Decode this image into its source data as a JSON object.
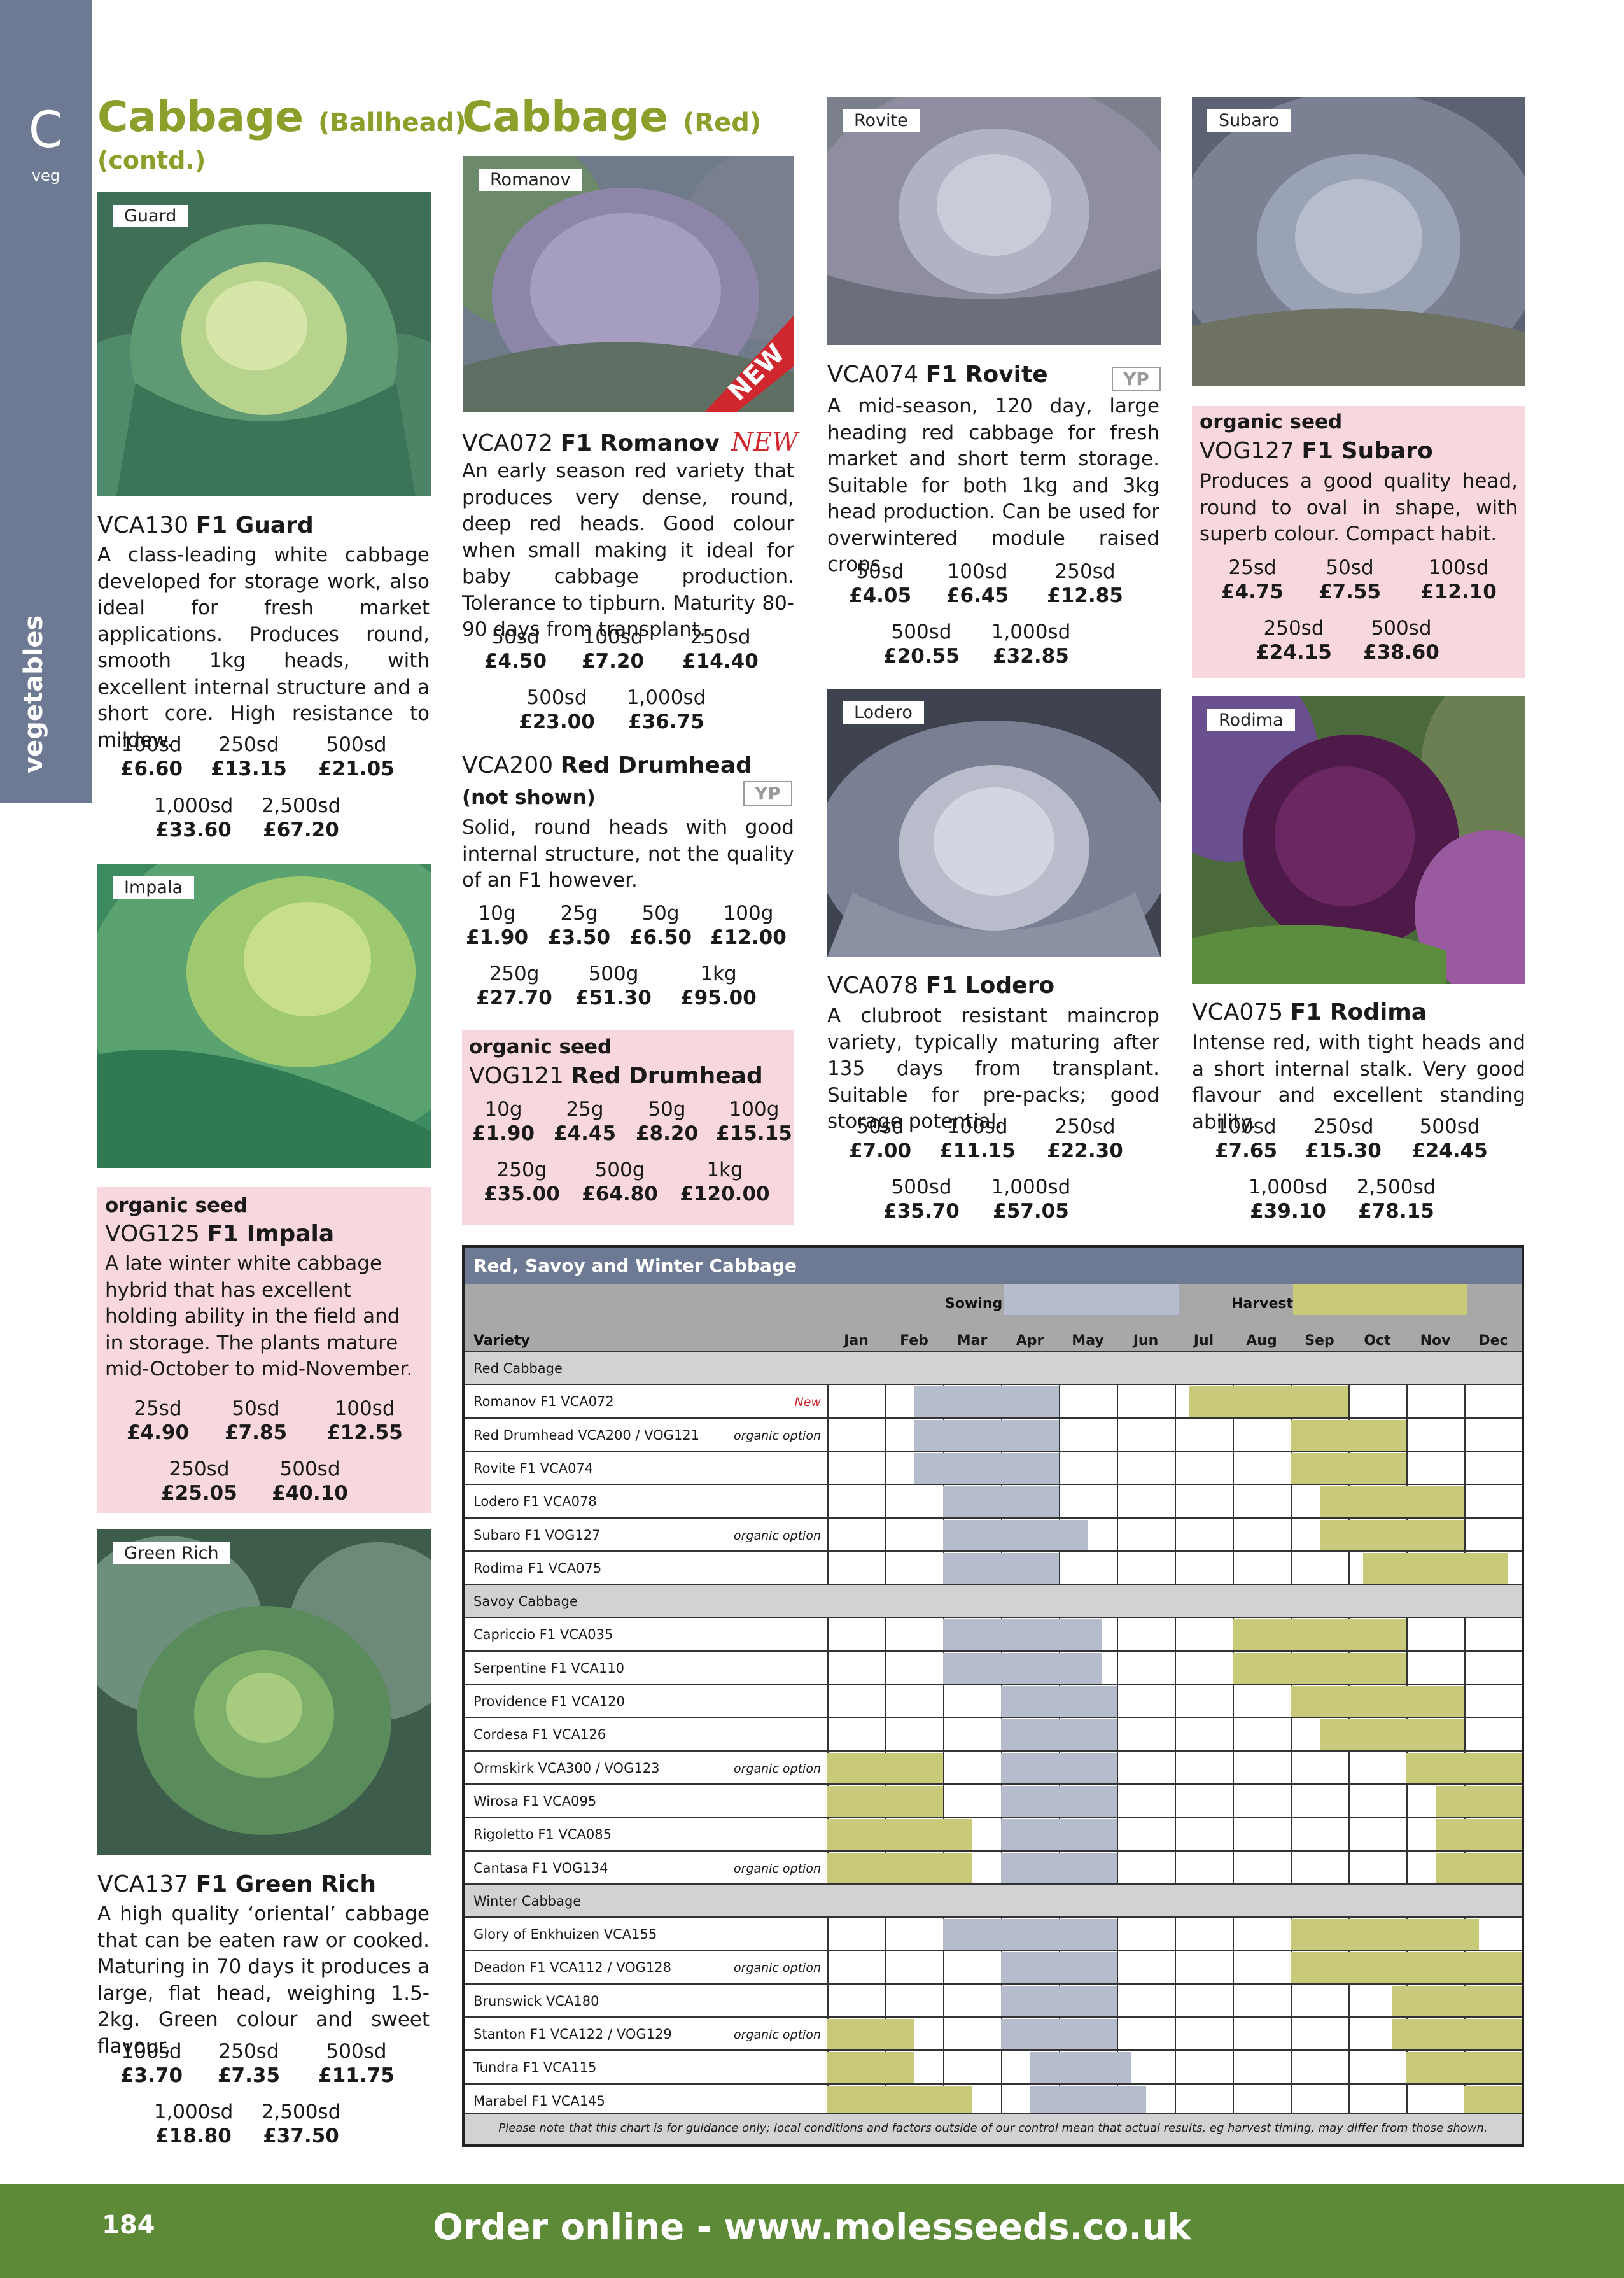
{
  "side_tab": {
    "letter": "C",
    "sub": "veg",
    "vertical": "vegetables"
  },
  "col1": {
    "title": "Cabbage",
    "title_sub": "(Ballhead)",
    "contd": "(contd.)",
    "guard": {
      "label": "Guard",
      "code": "VCA130",
      "name": "F1 Guard",
      "desc": "A class-leading white cabbage developed for storage work, also ideal for fresh market applications. Produces round, smooth 1kg heads, with excellent internal structure and a short core. High resistance to mildew.",
      "prices": [
        [
          "100sd",
          "£6.60"
        ],
        [
          "250sd",
          "£13.15"
        ],
        [
          "500sd",
          "£21.05"
        ],
        [
          "1,000sd",
          "£33.60"
        ],
        [
          "2,500sd",
          "£67.20"
        ]
      ]
    },
    "impala": {
      "label": "Impala",
      "organic": "organic seed",
      "code": "VOG125",
      "name": "F1 Impala",
      "desc": "A late winter white cabbage hybrid that has excellent holding ability in the field and in storage. The plants mature mid-October to mid-November.",
      "prices": [
        [
          "25sd",
          "£4.90"
        ],
        [
          "50sd",
          "£7.85"
        ],
        [
          "100sd",
          "£12.55"
        ],
        [
          "250sd",
          "£25.05"
        ],
        [
          "500sd",
          "£40.10"
        ]
      ]
    },
    "greenrich": {
      "label": "Green Rich",
      "code": "VCA137",
      "name": "F1 Green Rich",
      "desc": "A high quality ‘oriental’ cabbage that can be eaten raw or cooked. Maturing in 70 days it produces a large, flat head, weighing 1.5-2kg. Green colour and sweet flavour.",
      "prices": [
        [
          "100sd",
          "£3.70"
        ],
        [
          "250sd",
          "£7.35"
        ],
        [
          "500sd",
          "£11.75"
        ],
        [
          "1,000sd",
          "£18.80"
        ],
        [
          "2,500sd",
          "£37.50"
        ]
      ]
    }
  },
  "col2": {
    "title": "Cabbage",
    "title_sub": "(Red)",
    "romanov": {
      "label": "Romanov",
      "ribbon": "NEW",
      "code": "VCA072",
      "name": "F1 Romanov",
      "new": "NEW",
      "desc": "An early season red variety that produces very dense, round, deep red heads. Good colour when small making it ideal for baby cabbage production. Tolerance to tipburn. Maturity 80-90 days from transplant.",
      "prices": [
        [
          "50sd",
          "£4.50"
        ],
        [
          "100sd",
          "£7.20"
        ],
        [
          "250sd",
          "£14.40"
        ],
        [
          "500sd",
          "£23.00"
        ],
        [
          "1,000sd",
          "£36.75"
        ]
      ]
    },
    "drumhead": {
      "code": "VCA200",
      "name": "Red Drumhead",
      "not_shown": "(not shown)",
      "badge": "YP",
      "desc": "Solid, round heads with good internal structure, not the quality of an F1 however.",
      "prices": [
        [
          "10g",
          "£1.90"
        ],
        [
          "25g",
          "£3.50"
        ],
        [
          "50g",
          "£6.50"
        ],
        [
          "100g",
          "£12.00"
        ],
        [
          "250g",
          "£27.70"
        ],
        [
          "500g",
          "£51.30"
        ],
        [
          "1kg",
          "£95.00"
        ]
      ]
    },
    "drumhead_org": {
      "organic": "organic seed",
      "code": "VOG121",
      "name": "Red Drumhead",
      "prices": [
        [
          "10g",
          "£1.90"
        ],
        [
          "25g",
          "£4.45"
        ],
        [
          "50g",
          "£8.20"
        ],
        [
          "100g",
          "£15.15"
        ],
        [
          "250g",
          "£35.00"
        ],
        [
          "500g",
          "£64.80"
        ],
        [
          "1kg",
          "£120.00"
        ]
      ]
    }
  },
  "col3": {
    "rovite": {
      "label": "Rovite",
      "code": "VCA074",
      "name": "F1 Rovite",
      "badge": "YP",
      "desc": "A mid-season, 120 day, large heading red cabbage for fresh market and short term storage. Suitable for both 1kg and 3kg head production. Can be used for overwintered module raised crops.",
      "prices": [
        [
          "50sd",
          "£4.05"
        ],
        [
          "100sd",
          "£6.45"
        ],
        [
          "250sd",
          "£12.85"
        ],
        [
          "500sd",
          "£20.55"
        ],
        [
          "1,000sd",
          "£32.85"
        ]
      ]
    },
    "lodero": {
      "label": "Lodero",
      "code": "VCA078",
      "name": "F1 Lodero",
      "desc": "A clubroot resistant maincrop variety, typically maturing after 135 days from transplant. Suitable for pre-packs; good storage potential.",
      "prices": [
        [
          "50sd",
          "£7.00"
        ],
        [
          "100sd",
          "£11.15"
        ],
        [
          "250sd",
          "£22.30"
        ],
        [
          "500sd",
          "£35.70"
        ],
        [
          "1,000sd",
          "£57.05"
        ]
      ]
    }
  },
  "col4": {
    "subaro": {
      "label": "Subaro",
      "organic": "organic seed",
      "code": "VOG127",
      "name": "F1 Subaro",
      "desc": "Produces a good quality head, round to oval in shape, with superb colour. Compact habit.",
      "prices": [
        [
          "25sd",
          "£4.75"
        ],
        [
          "50sd",
          "£7.55"
        ],
        [
          "100sd",
          "£12.10"
        ],
        [
          "250sd",
          "£24.15"
        ],
        [
          "500sd",
          "£38.60"
        ]
      ]
    },
    "rodima": {
      "label": "Rodima",
      "code": "VCA075",
      "name": "F1 Rodima",
      "desc": "Intense red, with tight heads and a short internal stalk. Very good flavour and excellent standing ability.",
      "prices": [
        [
          "100sd",
          "£7.65"
        ],
        [
          "250sd",
          "£15.30"
        ],
        [
          "500sd",
          "£24.45"
        ],
        [
          "1,000sd",
          "£39.10"
        ],
        [
          "2,500sd",
          "£78.15"
        ]
      ]
    }
  },
  "chart_data": {
    "type": "table",
    "title": "Red, Savoy and Winter Cabbage",
    "legend": {
      "sowing": "Sowing",
      "harvest": "Harvest",
      "sowing_color": "#b5bccc",
      "harvest_color": "#c9c97a"
    },
    "variety_header": "Variety",
    "months": [
      "Jan",
      "Feb",
      "Mar",
      "Apr",
      "May",
      "Jun",
      "Jul",
      "Aug",
      "Sep",
      "Oct",
      "Nov",
      "Dec"
    ],
    "rows": [
      {
        "section": "Red Cabbage"
      },
      {
        "name": "Romanov F1 VCA072",
        "note": "New",
        "note_red": true,
        "sow": [
          [
            1.5,
            4
          ]
        ],
        "harv": [
          [
            6.25,
            9
          ]
        ]
      },
      {
        "name": "Red Drumhead VCA200 / VOG121",
        "note": "organic option",
        "sow": [
          [
            1.5,
            4
          ]
        ],
        "harv": [
          [
            8,
            10
          ]
        ]
      },
      {
        "name": "Rovite F1 VCA074",
        "sow": [
          [
            1.5,
            4
          ]
        ],
        "harv": [
          [
            8,
            10
          ]
        ]
      },
      {
        "name": "Lodero F1 VCA078",
        "sow": [
          [
            2,
            4
          ]
        ],
        "harv": [
          [
            8.5,
            11
          ]
        ]
      },
      {
        "name": "Subaro F1 VOG127",
        "note": "organic option",
        "sow": [
          [
            2,
            4.5
          ]
        ],
        "harv": [
          [
            8.5,
            11
          ]
        ]
      },
      {
        "name": "Rodima F1 VCA075",
        "sow": [
          [
            2,
            4
          ]
        ],
        "harv": [
          [
            9.25,
            11.75
          ]
        ]
      },
      {
        "section": "Savoy Cabbage"
      },
      {
        "name": "Capriccio F1 VCA035",
        "sow": [
          [
            2,
            4.75
          ]
        ],
        "harv": [
          [
            7,
            10
          ]
        ]
      },
      {
        "name": "Serpentine F1 VCA110",
        "sow": [
          [
            2,
            4.75
          ]
        ],
        "harv": [
          [
            7,
            10
          ]
        ]
      },
      {
        "name": "Providence F1 VCA120",
        "sow": [
          [
            3,
            5
          ]
        ],
        "harv": [
          [
            8,
            11
          ]
        ]
      },
      {
        "name": "Cordesa F1 VCA126",
        "sow": [
          [
            3,
            5
          ]
        ],
        "harv": [
          [
            8.5,
            11
          ]
        ]
      },
      {
        "name": "Ormskirk VCA300 / VOG123",
        "note": "organic option",
        "sow": [
          [
            3,
            5
          ]
        ],
        "harv": [
          [
            0,
            2
          ],
          [
            10,
            12
          ]
        ]
      },
      {
        "name": "Wirosa F1 VCA095",
        "sow": [
          [
            3,
            5
          ]
        ],
        "harv": [
          [
            0,
            2
          ],
          [
            10.5,
            12
          ]
        ]
      },
      {
        "name": "Rigoletto F1 VCA085",
        "sow": [
          [
            3,
            5
          ]
        ],
        "harv": [
          [
            0,
            2.5
          ],
          [
            10.5,
            12
          ]
        ]
      },
      {
        "name": "Cantasa F1 VOG134",
        "note": "organic option",
        "sow": [
          [
            3,
            5
          ]
        ],
        "harv": [
          [
            0,
            2.5
          ],
          [
            10.5,
            12
          ]
        ]
      },
      {
        "section": "Winter Cabbage"
      },
      {
        "name": "Glory of Enkhuizen VCA155",
        "sow": [
          [
            2,
            5
          ]
        ],
        "harv": [
          [
            8,
            11.25
          ]
        ]
      },
      {
        "name": "Deadon F1 VCA112 / VOG128",
        "note": "organic option",
        "sow": [
          [
            3,
            5
          ]
        ],
        "harv": [
          [
            8,
            12
          ]
        ]
      },
      {
        "name": "Brunswick VCA180",
        "sow": [
          [
            3,
            5
          ]
        ],
        "harv": [
          [
            9.75,
            12
          ]
        ]
      },
      {
        "name": "Stanton F1 VCA122 / VOG129",
        "note": "organic option",
        "sow": [
          [
            3,
            5
          ]
        ],
        "harv": [
          [
            0,
            1.5
          ],
          [
            9.75,
            12
          ]
        ]
      },
      {
        "name": "Tundra F1 VCA115",
        "sow": [
          [
            3.5,
            5.25
          ]
        ],
        "harv": [
          [
            0,
            1.5
          ],
          [
            10,
            12
          ]
        ]
      },
      {
        "name": "Marabel F1 VCA145",
        "sow": [
          [
            3.5,
            5.5
          ]
        ],
        "harv": [
          [
            0,
            2.5
          ],
          [
            11,
            12
          ]
        ]
      }
    ],
    "note": "Please note that this chart is for guidance only; local conditions and factors outside of our control mean that actual results, eg harvest timing, may differ from those shown."
  },
  "footer": {
    "page": "184",
    "url": "Order online - www.molesseeds.co.uk"
  },
  "colors": {
    "green_title": "#8aa02a",
    "pink_box": "#f9d7de",
    "side_tab": "#6e7a93",
    "footer": "#5d8a36",
    "new_red": "#d0262d"
  }
}
